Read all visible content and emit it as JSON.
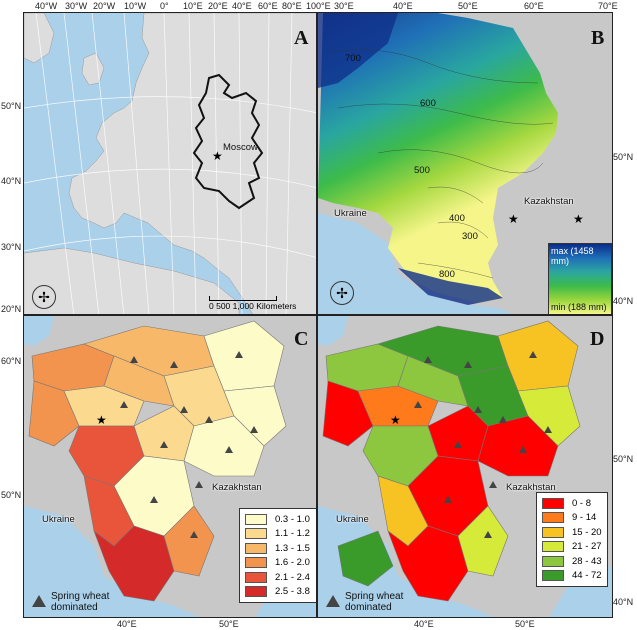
{
  "panels": {
    "A": {
      "letter": "A",
      "city": "Moscow",
      "scale_text": "0    500   1,000 Kilometers"
    },
    "B": {
      "letter": "B",
      "country_ukraine": "Ukraine",
      "country_kazakhstan": "Kazakhstan",
      "contours": [
        "700",
        "600",
        "500",
        "400",
        "300",
        "800"
      ],
      "colorbar_max": "max (1458 mm)",
      "colorbar_min": "min (188 mm)"
    },
    "C": {
      "letter": "C",
      "country_ukraine": "Ukraine",
      "country_kazakhstan": "Kazakhstan",
      "legend": [
        {
          "label": "0.3 - 1.0",
          "color": "#fdfbc8"
        },
        {
          "label": "1.1 - 1.2",
          "color": "#fbd98f"
        },
        {
          "label": "1.3 - 1.5",
          "color": "#f8b86a"
        },
        {
          "label": "1.6 - 2.0",
          "color": "#f2934e"
        },
        {
          "label": "2.1 - 2.4",
          "color": "#e8553a"
        },
        {
          "label": "2.5 - 3.8",
          "color": "#d42a2a"
        }
      ],
      "wheat_label_1": "Spring wheat",
      "wheat_label_2": "dominated"
    },
    "D": {
      "letter": "D",
      "country_ukraine": "Ukraine",
      "country_kazakhstan": "Kazakhstan",
      "legend": [
        {
          "label": "0 - 8",
          "color": "#ff0000"
        },
        {
          "label": "9 - 14",
          "color": "#ff7a1a"
        },
        {
          "label": "15 - 20",
          "color": "#f6c323"
        },
        {
          "label": "21 - 27",
          "color": "#d6ea3a"
        },
        {
          "label": "28 - 43",
          "color": "#8dc63f"
        },
        {
          "label": "44 - 72",
          "color": "#3a9a2a"
        }
      ],
      "wheat_label_1": "Spring wheat",
      "wheat_label_2": "dominated"
    }
  },
  "top_lon_labels": [
    "40°W",
    "30°W",
    "20°W",
    "10°W",
    "0°",
    "10°E",
    "20°E",
    "40°E",
    "60°E",
    "80°E",
    "100°E",
    "30°E",
    "40°E",
    "50°E",
    "60°E",
    "70°E"
  ],
  "left_lat_labels_A": [
    "50°N",
    "40°N",
    "30°N",
    "20°N"
  ],
  "right_lat_labels_B": [
    "50°N",
    "40°N"
  ],
  "left_lat_labels_C": [
    "60°N",
    "50°N"
  ],
  "right_lat_labels_D": [
    "50°N",
    "40°N"
  ],
  "bottom_lon_labels": [
    "40°E",
    "50°E",
    "40°E",
    "50°E"
  ],
  "colors": {
    "sea": "#aad0ea",
    "land": "#dddddd",
    "nonstudy": "#c8c8c8",
    "border": "#111111"
  }
}
